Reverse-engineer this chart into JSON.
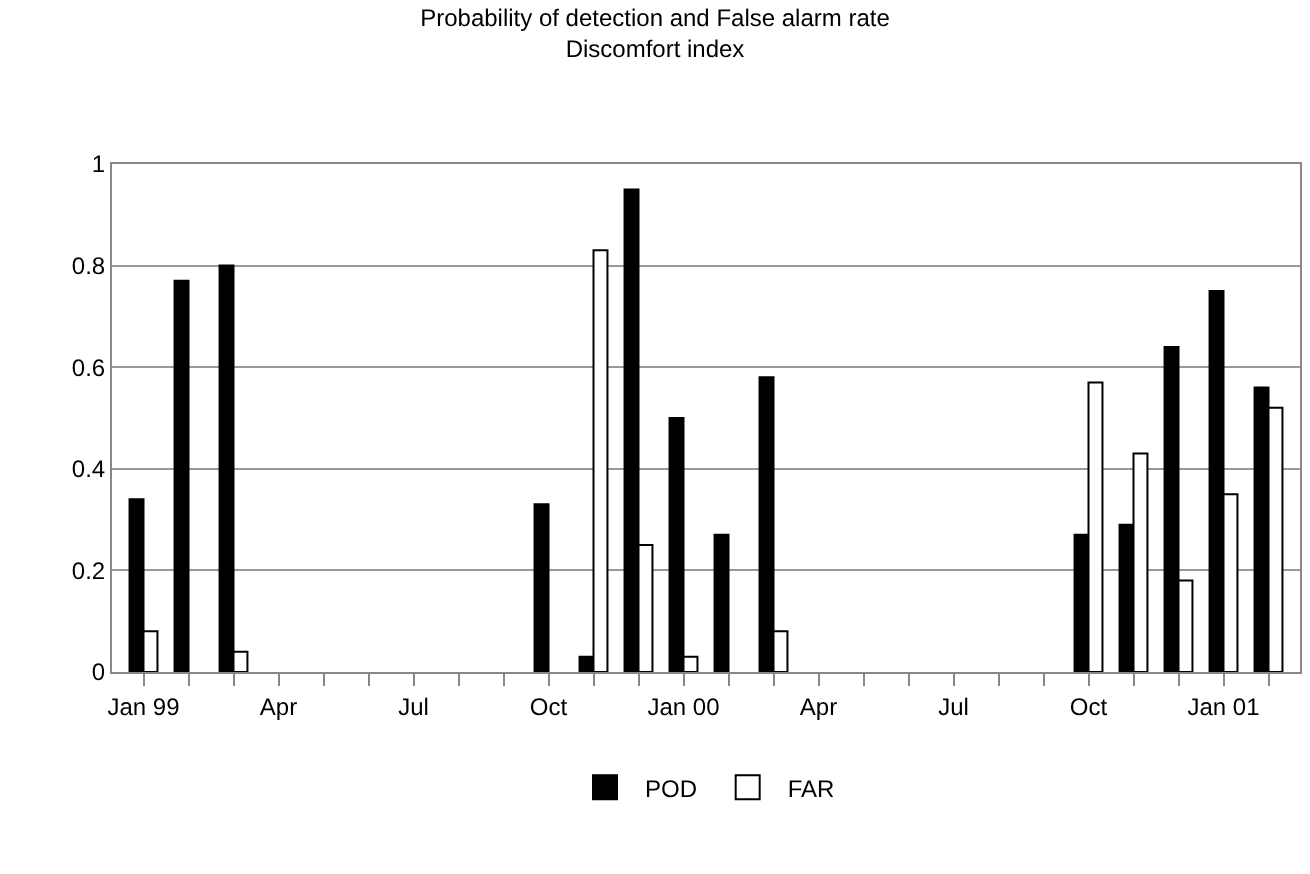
{
  "chart_data": {
    "type": "bar",
    "title": "Probability of detection and False alarm rate",
    "subtitle": "Discomfort index",
    "categories": [
      "Jan 99",
      null,
      null,
      "Apr",
      null,
      null,
      "Jul",
      null,
      null,
      "Oct",
      null,
      null,
      "Jan 00",
      null,
      null,
      "Apr",
      null,
      null,
      "Jul",
      null,
      null,
      "Oct",
      null,
      null,
      "Jan 01",
      null
    ],
    "series": [
      {
        "name": "POD",
        "color": "#000000",
        "values": [
          0.34,
          0.77,
          0.8,
          null,
          null,
          null,
          null,
          null,
          null,
          0.33,
          0.03,
          0.95,
          0.5,
          0.27,
          0.58,
          null,
          null,
          null,
          null,
          null,
          null,
          0.27,
          0.29,
          0.64,
          0.75,
          0.56
        ]
      },
      {
        "name": "FAR",
        "color": "#ffffff",
        "values": [
          0.08,
          null,
          0.04,
          null,
          null,
          null,
          null,
          null,
          null,
          null,
          0.83,
          0.25,
          0.03,
          null,
          0.08,
          null,
          null,
          null,
          null,
          null,
          null,
          0.57,
          0.43,
          0.18,
          0.35,
          0.52
        ]
      }
    ],
    "ylim": [
      0,
      1
    ],
    "yticks": [
      0,
      0.2,
      0.4,
      0.6,
      0.8,
      1
    ],
    "grid": "y",
    "legend": "bottom"
  }
}
